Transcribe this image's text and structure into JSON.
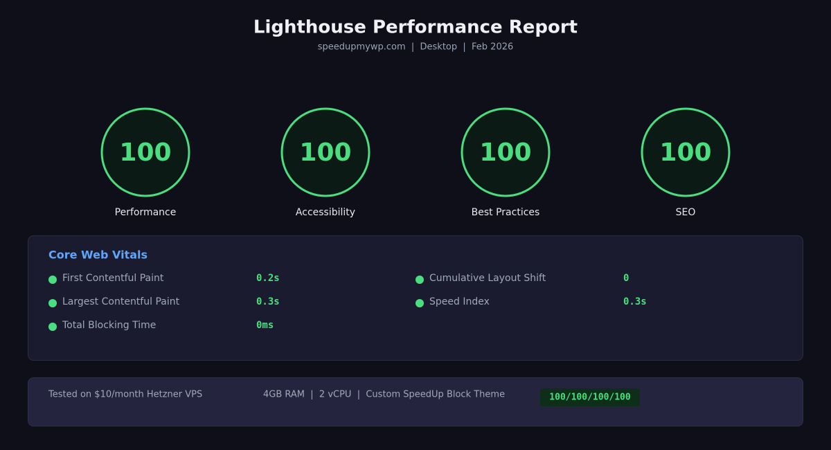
{
  "header": {
    "title": "Lighthouse Performance Report",
    "subtitle": "speedupmywp.com  |  Desktop  |  Feb 2026"
  },
  "scores": [
    {
      "label": "Performance",
      "value": 100
    },
    {
      "label": "Accessibility",
      "value": 100
    },
    {
      "label": "Best Practices",
      "value": 100
    },
    {
      "label": "SEO",
      "value": 100
    }
  ],
  "vitals": {
    "title": "Core Web Vitals",
    "items": [
      {
        "label": "First Contentful Paint",
        "value": "0.2s"
      },
      {
        "label": "Largest Contentful Paint",
        "value": "0.3s"
      },
      {
        "label": "Total Blocking Time",
        "value": "0ms"
      },
      {
        "label": "Cumulative Layout Shift",
        "value": "0"
      },
      {
        "label": "Speed Index",
        "value": "0.3s"
      }
    ]
  },
  "footer": {
    "note": "Tested on $10/month Hetzner VPS",
    "specs": "4GB RAM  |  2 vCPU  |  Custom SpeedUp Block Theme",
    "badge": "100/100/100/100"
  }
}
